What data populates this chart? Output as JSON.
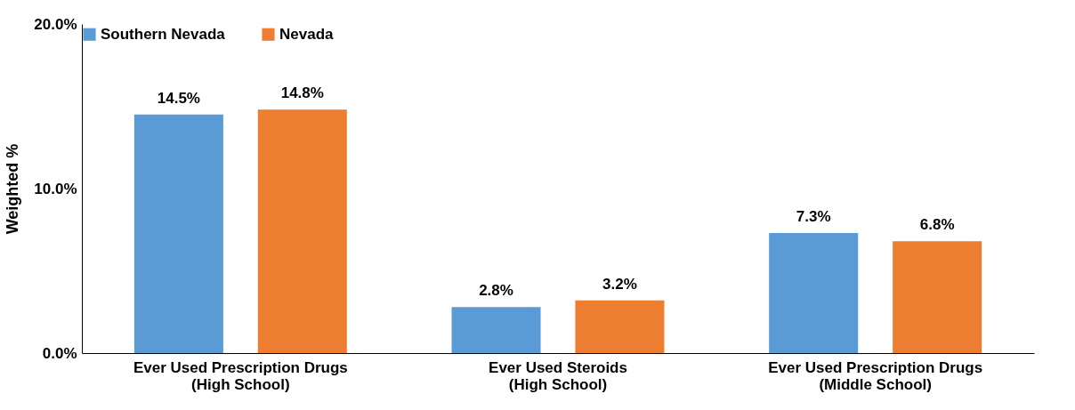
{
  "chart_data": {
    "type": "bar",
    "ylabel": "Weighted %",
    "categories": [
      "Ever Used Prescription Drugs\n(High School)",
      "Ever Used Steroids\n(High School)",
      "Ever Used Prescription Drugs\n(Middle School)"
    ],
    "series": [
      {
        "name": "Southern Nevada",
        "color": "#5b9bd5",
        "values": [
          14.5,
          2.8,
          7.3
        ],
        "value_labels": [
          "14.5%",
          "2.8%",
          "7.3%"
        ]
      },
      {
        "name": "Nevada",
        "color": "#ed7d31",
        "values": [
          14.8,
          3.2,
          6.8
        ],
        "value_labels": [
          "14.8%",
          "3.2%",
          "6.8%"
        ]
      }
    ],
    "ylim": [
      0,
      20
    ],
    "yticks": [
      {
        "value": 0,
        "label": "0.0%"
      },
      {
        "value": 10,
        "label": "10.0%"
      },
      {
        "value": 20,
        "label": "20.0%"
      }
    ],
    "grid": false,
    "legend": "top"
  }
}
